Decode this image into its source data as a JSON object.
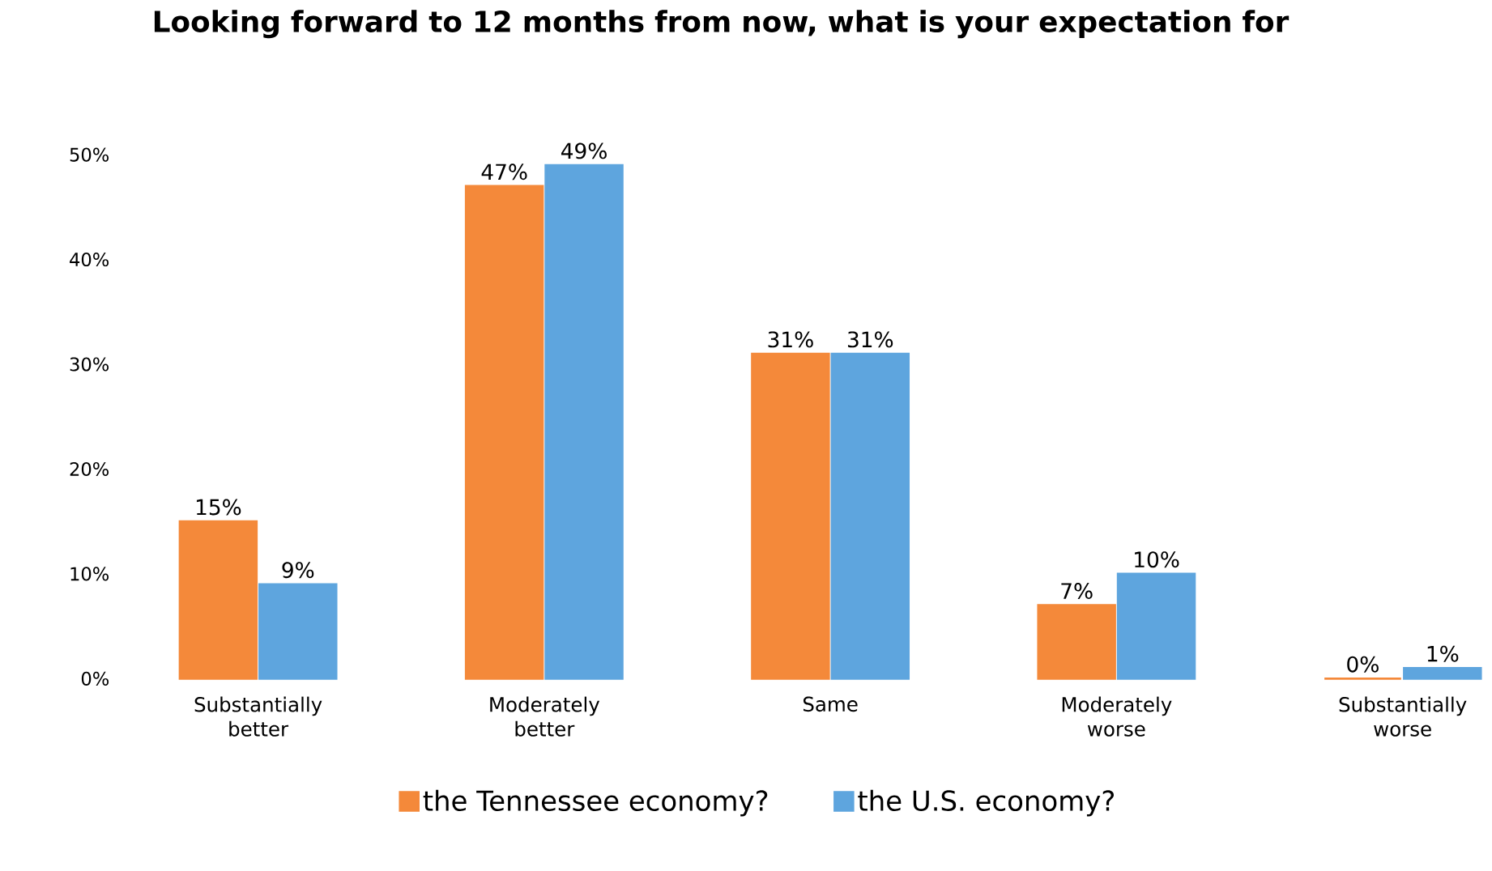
{
  "chart_data": {
    "type": "bar",
    "title": "Looking forward to 12 months from now, what is your expectation for",
    "categories": [
      "Substantially better",
      "Moderately better",
      "Same",
      "Moderately worse",
      "Substantially worse"
    ],
    "series": [
      {
        "name": "the Tennessee economy?",
        "color": "#f4893a",
        "values": [
          15,
          47,
          31,
          7,
          0
        ],
        "value_labels": [
          "15%",
          "47%",
          "31%",
          "7%",
          "0%"
        ]
      },
      {
        "name": "the U.S. economy?",
        "color": "#5ea5de",
        "values": [
          9,
          49,
          31,
          10,
          1
        ],
        "value_labels": [
          "9%",
          "49%",
          "31%",
          "10%",
          "1%"
        ]
      }
    ],
    "ylim": [
      0,
      50
    ],
    "yticks": [
      {
        "value": 0,
        "label": "0%"
      },
      {
        "value": 10,
        "label": "10%"
      },
      {
        "value": 20,
        "label": "20%"
      },
      {
        "value": 30,
        "label": "30%"
      },
      {
        "value": 40,
        "label": "40%"
      },
      {
        "value": 50,
        "label": "50%"
      }
    ],
    "legend": "bottom"
  }
}
